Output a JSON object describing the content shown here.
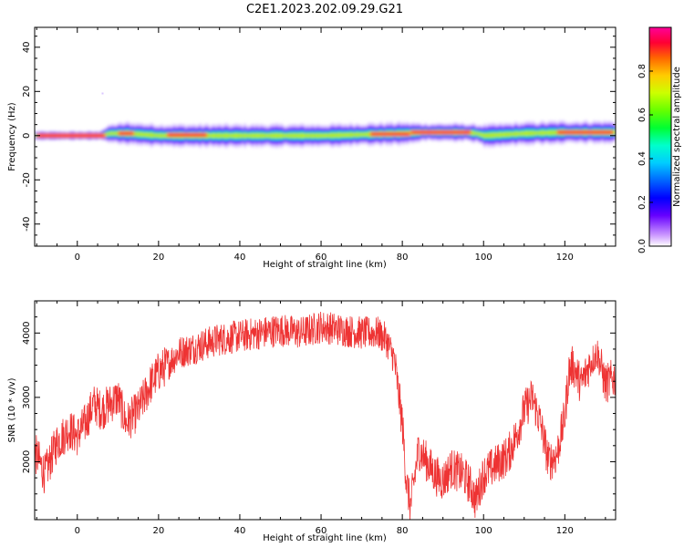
{
  "title": "C2E1.2023.202.09.29.G21",
  "chart_data": [
    {
      "type": "heatmap",
      "xlabel": "Height of straight line (km)",
      "ylabel": "Frequency (Hz)",
      "xlim": [
        -10.5,
        132.5
      ],
      "ylim": [
        -50,
        49
      ],
      "x_ticks": [
        0,
        20,
        40,
        60,
        80,
        100,
        120
      ],
      "x_tick_labels": [
        "0",
        "20",
        "40",
        "60",
        "80",
        "100",
        "120"
      ],
      "y_ticks": [
        -40,
        -20,
        0,
        20,
        40
      ],
      "y_tick_labels": [
        "-40",
        "-20",
        "0",
        "20",
        "40"
      ],
      "colorbar": {
        "label": "Normalized spectral amplitude",
        "range": [
          0,
          1
        ],
        "ticks": [
          0.0,
          0.2,
          0.4,
          0.6,
          0.8
        ],
        "tick_labels": [
          "0.0",
          "0.2",
          "0.4",
          "0.6",
          "0.8"
        ],
        "colormap": "gist_rainbow (magenta→red)"
      },
      "peak_band": {
        "x": [
          -10,
          -5,
          0,
          5,
          8,
          12,
          20,
          40,
          60,
          80,
          85,
          95,
          98,
          100,
          110,
          120,
          132
        ],
        "center_hz": [
          0,
          0,
          0,
          0,
          1,
          1,
          0,
          0,
          0,
          1,
          1.5,
          1.5,
          1,
          0,
          1,
          1.5,
          1.5
        ],
        "spread_hz": [
          2,
          2,
          2,
          2,
          4,
          5,
          5,
          5,
          5,
          5,
          4,
          4,
          4,
          5,
          5,
          5,
          5
        ]
      }
    },
    {
      "type": "line",
      "xlabel": "Height of straight line (km)",
      "ylabel": "SNR (10 * v/v)",
      "xlim": [
        -10.5,
        132.5
      ],
      "ylim": [
        1100,
        4500
      ],
      "x_ticks": [
        0,
        20,
        40,
        60,
        80,
        100,
        120
      ],
      "x_tick_labels": [
        "0",
        "20",
        "40",
        "60",
        "80",
        "100",
        "120"
      ],
      "y_ticks": [
        2000,
        3000,
        4000
      ],
      "y_tick_labels": [
        "2000",
        "3000",
        "4000"
      ],
      "color": "#ee3333",
      "series": [
        {
          "x": [
            -10,
            -8,
            -5,
            -2,
            0,
            2,
            4,
            6,
            8,
            10,
            12,
            15,
            18,
            20,
            22,
            25,
            28,
            30,
            35,
            40,
            45,
            50,
            55,
            60,
            65,
            70,
            74,
            76,
            78,
            80,
            81,
            82,
            84,
            86,
            88,
            90,
            92,
            95,
            97,
            98,
            100,
            102,
            104,
            106,
            108,
            110,
            112,
            114,
            116,
            118,
            120,
            121,
            122,
            124,
            126,
            128,
            130,
            132
          ],
          "y": [
            2100,
            1800,
            2300,
            2500,
            2400,
            2600,
            2900,
            2800,
            2900,
            3000,
            2600,
            2800,
            3200,
            3400,
            3500,
            3700,
            3750,
            3800,
            3900,
            3950,
            4000,
            4050,
            4000,
            4100,
            4050,
            4000,
            4000,
            3900,
            3600,
            2600,
            1700,
            1300,
            2200,
            2000,
            1800,
            1700,
            1900,
            1800,
            1600,
            1400,
            1800,
            1900,
            2000,
            2100,
            2400,
            2800,
            3000,
            2600,
            2000,
            2100,
            2700,
            3400,
            3500,
            3200,
            3500,
            3700,
            3200,
            3300
          ]
        }
      ]
    }
  ]
}
